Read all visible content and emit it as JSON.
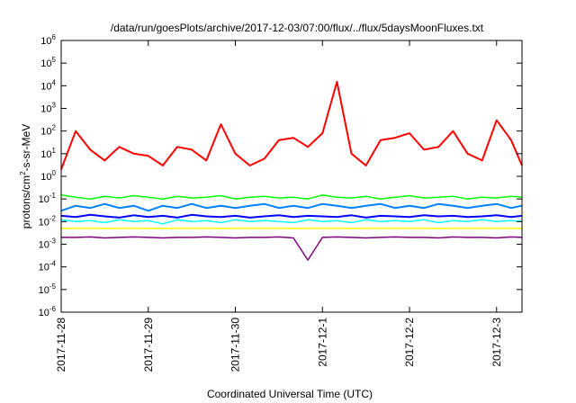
{
  "chart_data": {
    "type": "line",
    "title": "/data/run/goesPlots/archive/2017-12-03/07:00/flux/../flux/5daysMoonFluxes.txt",
    "xlabel": "Coordinated Universal Time (UTC)",
    "ylabel": "protons/cm2-s-sr-MeV",
    "ylabel_base": "protons/cm",
    "ylabel_sup": "2",
    "ylabel_rest": "-s-sr-MeV",
    "yscale": "log",
    "ylim": [
      1e-06,
      1000000
    ],
    "yticks": [
      {
        "value": 1e-06,
        "base": "10",
        "exp": "-6"
      },
      {
        "value": 1e-05,
        "base": "10",
        "exp": "-5"
      },
      {
        "value": 0.0001,
        "base": "10",
        "exp": "-4"
      },
      {
        "value": 0.001,
        "base": "10",
        "exp": "-3"
      },
      {
        "value": 0.01,
        "base": "10",
        "exp": "-2"
      },
      {
        "value": 0.1,
        "base": "10",
        "exp": "-1"
      },
      {
        "value": 1,
        "base": "10",
        "exp": "0"
      },
      {
        "value": 10,
        "base": "10",
        "exp": "1"
      },
      {
        "value": 100,
        "base": "10",
        "exp": "2"
      },
      {
        "value": 1000,
        "base": "10",
        "exp": "3"
      },
      {
        "value": 10000,
        "base": "10",
        "exp": "4"
      },
      {
        "value": 100000,
        "base": "10",
        "exp": "5"
      },
      {
        "value": 1000000,
        "base": "10",
        "exp": "6"
      }
    ],
    "xlim": [
      "2017-11-28T00:00",
      "2017-12-03T07:00"
    ],
    "xticks": [
      {
        "value": "2017-11-28T00:00",
        "label": "2017-11-28"
      },
      {
        "value": "2017-11-29T00:00",
        "label": "2017-11-29"
      },
      {
        "value": "2017-11-30T00:00",
        "label": "2017-11-30"
      },
      {
        "value": "2017-12-01T00:00",
        "label": "2017-12-1"
      },
      {
        "value": "2017-12-02T00:00",
        "label": "2017-12-2"
      },
      {
        "value": "2017-12-03T00:00",
        "label": "2017-12-3"
      }
    ],
    "grid": false,
    "x": [
      "2017-11-28T00:00",
      "2017-11-28T04:00",
      "2017-11-28T08:00",
      "2017-11-28T12:00",
      "2017-11-28T16:00",
      "2017-11-28T20:00",
      "2017-11-29T00:00",
      "2017-11-29T04:00",
      "2017-11-29T08:00",
      "2017-11-29T12:00",
      "2017-11-29T16:00",
      "2017-11-29T20:00",
      "2017-11-30T00:00",
      "2017-11-30T04:00",
      "2017-11-30T08:00",
      "2017-11-30T12:00",
      "2017-11-30T16:00",
      "2017-11-30T20:00",
      "2017-12-01T00:00",
      "2017-12-01T04:00",
      "2017-12-01T08:00",
      "2017-12-01T12:00",
      "2017-12-01T16:00",
      "2017-12-01T20:00",
      "2017-12-02T00:00",
      "2017-12-02T04:00",
      "2017-12-02T08:00",
      "2017-12-02T12:00",
      "2017-12-02T16:00",
      "2017-12-02T20:00",
      "2017-12-03T00:00",
      "2017-12-03T04:00",
      "2017-12-03T07:00"
    ],
    "series": [
      {
        "color": "#ff0000",
        "width": 2,
        "values": [
          2,
          100,
          15,
          5,
          20,
          10,
          8,
          3,
          20,
          15,
          5,
          200,
          10,
          3,
          6,
          40,
          50,
          20,
          80,
          15000,
          10,
          3,
          40,
          50,
          80,
          15,
          20,
          100,
          10,
          5,
          300,
          40,
          3
        ]
      },
      {
        "color": "#00ff00",
        "width": 1.5,
        "values": [
          0.15,
          0.12,
          0.1,
          0.13,
          0.11,
          0.14,
          0.12,
          0.1,
          0.13,
          0.11,
          0.12,
          0.14,
          0.1,
          0.12,
          0.13,
          0.11,
          0.12,
          0.1,
          0.15,
          0.12,
          0.11,
          0.13,
          0.1,
          0.12,
          0.14,
          0.11,
          0.12,
          0.13,
          0.1,
          0.12,
          0.11,
          0.13,
          0.12
        ]
      },
      {
        "color": "#00ffff",
        "width": 1.5,
        "values": [
          0.012,
          0.01,
          0.011,
          0.009,
          0.012,
          0.01,
          0.011,
          0.008,
          0.012,
          0.01,
          0.011,
          0.009,
          0.012,
          0.01,
          0.011,
          0.01,
          0.009,
          0.012,
          0.01,
          0.011,
          0.009,
          0.012,
          0.01,
          0.011,
          0.01,
          0.012,
          0.009,
          0.011,
          0.01,
          0.012,
          0.01,
          0.011,
          0.01
        ]
      },
      {
        "color": "#0080ff",
        "width": 2,
        "values": [
          0.03,
          0.05,
          0.04,
          0.06,
          0.04,
          0.05,
          0.03,
          0.05,
          0.04,
          0.06,
          0.04,
          0.05,
          0.04,
          0.05,
          0.06,
          0.04,
          0.05,
          0.04,
          0.06,
          0.05,
          0.04,
          0.05,
          0.06,
          0.04,
          0.05,
          0.04,
          0.06,
          0.05,
          0.04,
          0.05,
          0.06,
          0.04,
          0.05
        ]
      },
      {
        "color": "#0000ff",
        "width": 2,
        "values": [
          0.018,
          0.016,
          0.02,
          0.017,
          0.015,
          0.019,
          0.016,
          0.018,
          0.015,
          0.02,
          0.017,
          0.016,
          0.018,
          0.015,
          0.017,
          0.019,
          0.016,
          0.018,
          0.017,
          0.016,
          0.019,
          0.015,
          0.018,
          0.017,
          0.016,
          0.019,
          0.017,
          0.018,
          0.016,
          0.017,
          0.019,
          0.016,
          0.018
        ]
      },
      {
        "color": "#ffff00",
        "width": 1.5,
        "values": [
          0.005,
          0.005,
          0.005,
          0.005,
          0.005,
          0.005,
          0.005,
          0.005,
          0.005,
          0.005,
          0.005,
          0.005,
          0.005,
          0.005,
          0.005,
          0.005,
          0.005,
          0.005,
          0.005,
          0.005,
          0.005,
          0.005,
          0.005,
          0.005,
          0.005,
          0.005,
          0.005,
          0.005,
          0.005,
          0.005,
          0.005,
          0.005,
          0.005
        ]
      },
      {
        "color": "#800080",
        "width": 1.5,
        "values": [
          0.002,
          0.002,
          0.0021,
          0.0019,
          0.002,
          0.0021,
          0.002,
          0.0019,
          0.002,
          0.002,
          0.0021,
          0.002,
          0.0019,
          0.002,
          0.002,
          0.0021,
          0.0019,
          0.0002,
          0.002,
          0.0021,
          0.002,
          0.0019,
          0.002,
          0.0021,
          0.002,
          0.002,
          0.0019,
          0.0021,
          0.002,
          0.002,
          0.0019,
          0.0021,
          0.002
        ]
      }
    ]
  }
}
